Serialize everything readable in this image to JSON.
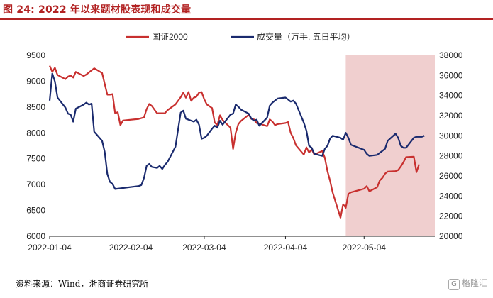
{
  "header": {
    "title": "图 24: 2022 年以来题材股表现和成交量"
  },
  "footer": {
    "source": "资料来源：Wind，浙商证券研究所",
    "watermark_text": "格隆汇",
    "watermark_glyph": "G"
  },
  "colors": {
    "series_red": "#c8302f",
    "series_navy": "#1a2a6e",
    "shade": "#f0cfcf",
    "title": "#b22222"
  },
  "chart_data": {
    "type": "line",
    "title": "",
    "xlabel": "",
    "ylabel": "",
    "x_ticks": [
      "2022-01-04",
      "2022-02-04",
      "2022-03-04",
      "2022-04-04",
      "2022-05-04"
    ],
    "y_left": {
      "min": 6000,
      "max": 9500,
      "ticks": [
        6000,
        6500,
        7000,
        7500,
        8000,
        8500,
        9000,
        9500
      ]
    },
    "y_right": {
      "min": 20000,
      "max": 38000,
      "ticks": [
        20000,
        22000,
        24000,
        26000,
        28000,
        30000,
        32000,
        34000,
        36000,
        38000
      ]
    },
    "legend": [
      "国证2000",
      "成交量（万手, 五日平均）"
    ],
    "legend_position": "top",
    "grid": false,
    "shaded_region": {
      "from": "2022-04-27",
      "to": "2022-05-31"
    },
    "series": [
      {
        "name": "国证2000",
        "axis": "left",
        "points": [
          [
            "2022-01-04",
            9300
          ],
          [
            "2022-01-05",
            9180
          ],
          [
            "2022-01-06",
            9260
          ],
          [
            "2022-01-07",
            9120
          ],
          [
            "2022-01-10",
            9040
          ],
          [
            "2022-01-11",
            9090
          ],
          [
            "2022-01-12",
            9110
          ],
          [
            "2022-01-13",
            9070
          ],
          [
            "2022-01-14",
            9180
          ],
          [
            "2022-01-17",
            9100
          ],
          [
            "2022-01-18",
            9130
          ],
          [
            "2022-01-19",
            9170
          ],
          [
            "2022-01-20",
            9210
          ],
          [
            "2022-01-21",
            9250
          ],
          [
            "2022-01-24",
            9160
          ],
          [
            "2022-01-25",
            8950
          ],
          [
            "2022-01-26",
            8740
          ],
          [
            "2022-01-27",
            8740
          ],
          [
            "2022-01-28",
            8750
          ],
          [
            "2022-01-29",
            8380
          ],
          [
            "2022-01-30",
            8400
          ],
          [
            "2022-01-31",
            8150
          ],
          [
            "2022-02-01",
            8240
          ],
          [
            "2022-02-07",
            8270
          ],
          [
            "2022-02-09",
            8300
          ],
          [
            "2022-02-10",
            8460
          ],
          [
            "2022-02-11",
            8560
          ],
          [
            "2022-02-12",
            8520
          ],
          [
            "2022-02-14",
            8380
          ],
          [
            "2022-02-17",
            8380
          ],
          [
            "2022-02-18",
            8440
          ],
          [
            "2022-02-21",
            8550
          ],
          [
            "2022-02-22",
            8620
          ],
          [
            "2022-02-23",
            8690
          ],
          [
            "2022-02-24",
            8780
          ],
          [
            "2022-02-25",
            8680
          ],
          [
            "2022-02-26",
            8790
          ],
          [
            "2022-02-27",
            8620
          ],
          [
            "2022-02-28",
            8680
          ],
          [
            "2022-03-01",
            8700
          ],
          [
            "2022-03-02",
            8780
          ],
          [
            "2022-03-03",
            8790
          ],
          [
            "2022-03-04",
            8650
          ],
          [
            "2022-03-05",
            8550
          ],
          [
            "2022-03-07",
            8480
          ],
          [
            "2022-03-08",
            8200
          ],
          [
            "2022-03-09",
            8150
          ],
          [
            "2022-03-10",
            8340
          ],
          [
            "2022-03-11",
            8250
          ],
          [
            "2022-03-14",
            8100
          ],
          [
            "2022-03-15",
            7690
          ],
          [
            "2022-03-16",
            8000
          ],
          [
            "2022-03-17",
            8170
          ],
          [
            "2022-03-18",
            8230
          ],
          [
            "2022-03-21",
            8350
          ],
          [
            "2022-03-22",
            8270
          ],
          [
            "2022-03-23",
            8260
          ],
          [
            "2022-03-24",
            8190
          ],
          [
            "2022-03-25",
            8180
          ],
          [
            "2022-03-28",
            8130
          ],
          [
            "2022-03-29",
            8260
          ],
          [
            "2022-03-30",
            8220
          ],
          [
            "2022-03-31",
            8150
          ],
          [
            "2022-04-01",
            8170
          ],
          [
            "2022-04-04",
            8190
          ],
          [
            "2022-04-05",
            8210
          ],
          [
            "2022-04-06",
            8000
          ],
          [
            "2022-04-07",
            7900
          ],
          [
            "2022-04-08",
            7760
          ],
          [
            "2022-04-11",
            7580
          ],
          [
            "2022-04-12",
            7720
          ],
          [
            "2022-04-13",
            7620
          ],
          [
            "2022-04-14",
            7680
          ],
          [
            "2022-04-15",
            7580
          ],
          [
            "2022-04-18",
            7650
          ],
          [
            "2022-04-19",
            7520
          ],
          [
            "2022-04-20",
            7260
          ],
          [
            "2022-04-21",
            7080
          ],
          [
            "2022-04-22",
            6850
          ],
          [
            "2022-04-25",
            6360
          ],
          [
            "2022-04-26",
            6620
          ],
          [
            "2022-04-27",
            6550
          ],
          [
            "2022-04-28",
            6820
          ],
          [
            "2022-04-29",
            6850
          ],
          [
            "2022-05-04",
            6920
          ],
          [
            "2022-05-05",
            6970
          ],
          [
            "2022-05-06",
            6870
          ],
          [
            "2022-05-09",
            6950
          ],
          [
            "2022-05-10",
            7080
          ],
          [
            "2022-05-11",
            7130
          ],
          [
            "2022-05-12",
            7210
          ],
          [
            "2022-05-13",
            7250
          ],
          [
            "2022-05-16",
            7260
          ],
          [
            "2022-05-17",
            7280
          ],
          [
            "2022-05-18",
            7350
          ],
          [
            "2022-05-19",
            7430
          ],
          [
            "2022-05-20",
            7530
          ],
          [
            "2022-05-23",
            7540
          ],
          [
            "2022-05-24",
            7240
          ],
          [
            "2022-05-25",
            7390
          ]
        ]
      },
      {
        "name": "成交量（万手, 五日平均）",
        "axis": "right",
        "points": [
          [
            "2022-01-04",
            33500
          ],
          [
            "2022-01-05",
            36200
          ],
          [
            "2022-01-06",
            35400
          ],
          [
            "2022-01-07",
            33800
          ],
          [
            "2022-01-10",
            32800
          ],
          [
            "2022-01-11",
            32200
          ],
          [
            "2022-01-12",
            32100
          ],
          [
            "2022-01-13",
            31400
          ],
          [
            "2022-01-14",
            32700
          ],
          [
            "2022-01-17",
            33100
          ],
          [
            "2022-01-18",
            33300
          ],
          [
            "2022-01-19",
            33100
          ],
          [
            "2022-01-20",
            33200
          ],
          [
            "2022-01-21",
            30400
          ],
          [
            "2022-01-24",
            29500
          ],
          [
            "2022-01-25",
            28400
          ],
          [
            "2022-01-26",
            26200
          ],
          [
            "2022-01-27",
            25400
          ],
          [
            "2022-01-28",
            25200
          ],
          [
            "2022-01-29",
            24700
          ],
          [
            "2022-02-07",
            25000
          ],
          [
            "2022-02-08",
            25100
          ],
          [
            "2022-02-09",
            25800
          ],
          [
            "2022-02-10",
            27000
          ],
          [
            "2022-02-11",
            27200
          ],
          [
            "2022-02-12",
            26900
          ],
          [
            "2022-02-14",
            26800
          ],
          [
            "2022-02-15",
            27000
          ],
          [
            "2022-02-16",
            26700
          ],
          [
            "2022-02-17",
            27100
          ],
          [
            "2022-02-18",
            27400
          ],
          [
            "2022-02-21",
            28900
          ],
          [
            "2022-02-22",
            30600
          ],
          [
            "2022-02-23",
            32300
          ],
          [
            "2022-02-24",
            32500
          ],
          [
            "2022-02-25",
            31700
          ],
          [
            "2022-02-28",
            31400
          ],
          [
            "2022-03-01",
            31600
          ],
          [
            "2022-03-02",
            31100
          ],
          [
            "2022-03-03",
            29700
          ],
          [
            "2022-03-04",
            29800
          ],
          [
            "2022-03-05",
            30000
          ],
          [
            "2022-03-07",
            30700
          ],
          [
            "2022-03-08",
            31000
          ],
          [
            "2022-03-09",
            30800
          ],
          [
            "2022-03-10",
            31500
          ],
          [
            "2022-03-11",
            31100
          ],
          [
            "2022-03-14",
            32100
          ],
          [
            "2022-03-15",
            32200
          ],
          [
            "2022-03-16",
            33100
          ],
          [
            "2022-03-17",
            32900
          ],
          [
            "2022-03-18",
            32600
          ],
          [
            "2022-03-21",
            32200
          ],
          [
            "2022-03-22",
            31700
          ],
          [
            "2022-03-23",
            31500
          ],
          [
            "2022-03-24",
            31600
          ],
          [
            "2022-03-25",
            31000
          ],
          [
            "2022-03-28",
            31800
          ],
          [
            "2022-03-29",
            33000
          ],
          [
            "2022-03-30",
            33300
          ],
          [
            "2022-03-31",
            33500
          ],
          [
            "2022-04-01",
            33700
          ],
          [
            "2022-04-04",
            33800
          ],
          [
            "2022-04-05",
            33600
          ],
          [
            "2022-04-06",
            33400
          ],
          [
            "2022-04-07",
            33500
          ],
          [
            "2022-04-08",
            33200
          ],
          [
            "2022-04-11",
            31300
          ],
          [
            "2022-04-12",
            30500
          ],
          [
            "2022-04-13",
            29000
          ],
          [
            "2022-04-14",
            28800
          ],
          [
            "2022-04-15",
            28200
          ],
          [
            "2022-04-18",
            28000
          ],
          [
            "2022-04-19",
            28700
          ],
          [
            "2022-04-20",
            29000
          ],
          [
            "2022-04-21",
            29700
          ],
          [
            "2022-04-22",
            30000
          ],
          [
            "2022-04-25",
            29800
          ],
          [
            "2022-04-26",
            29600
          ],
          [
            "2022-04-27",
            30300
          ],
          [
            "2022-04-28",
            29800
          ],
          [
            "2022-04-29",
            29100
          ],
          [
            "2022-05-04",
            28600
          ],
          [
            "2022-05-05",
            28200
          ],
          [
            "2022-05-06",
            28000
          ],
          [
            "2022-05-09",
            28100
          ],
          [
            "2022-05-10",
            28300
          ],
          [
            "2022-05-11",
            28500
          ],
          [
            "2022-05-12",
            28700
          ],
          [
            "2022-05-13",
            29500
          ],
          [
            "2022-05-16",
            30200
          ],
          [
            "2022-05-17",
            29800
          ],
          [
            "2022-05-18",
            29000
          ],
          [
            "2022-05-19",
            28800
          ],
          [
            "2022-05-20",
            28800
          ],
          [
            "2022-05-23",
            29800
          ],
          [
            "2022-05-24",
            29900
          ],
          [
            "2022-05-25",
            29900
          ],
          [
            "2022-05-26",
            29900
          ],
          [
            "2022-05-27",
            30000
          ]
        ]
      }
    ]
  }
}
